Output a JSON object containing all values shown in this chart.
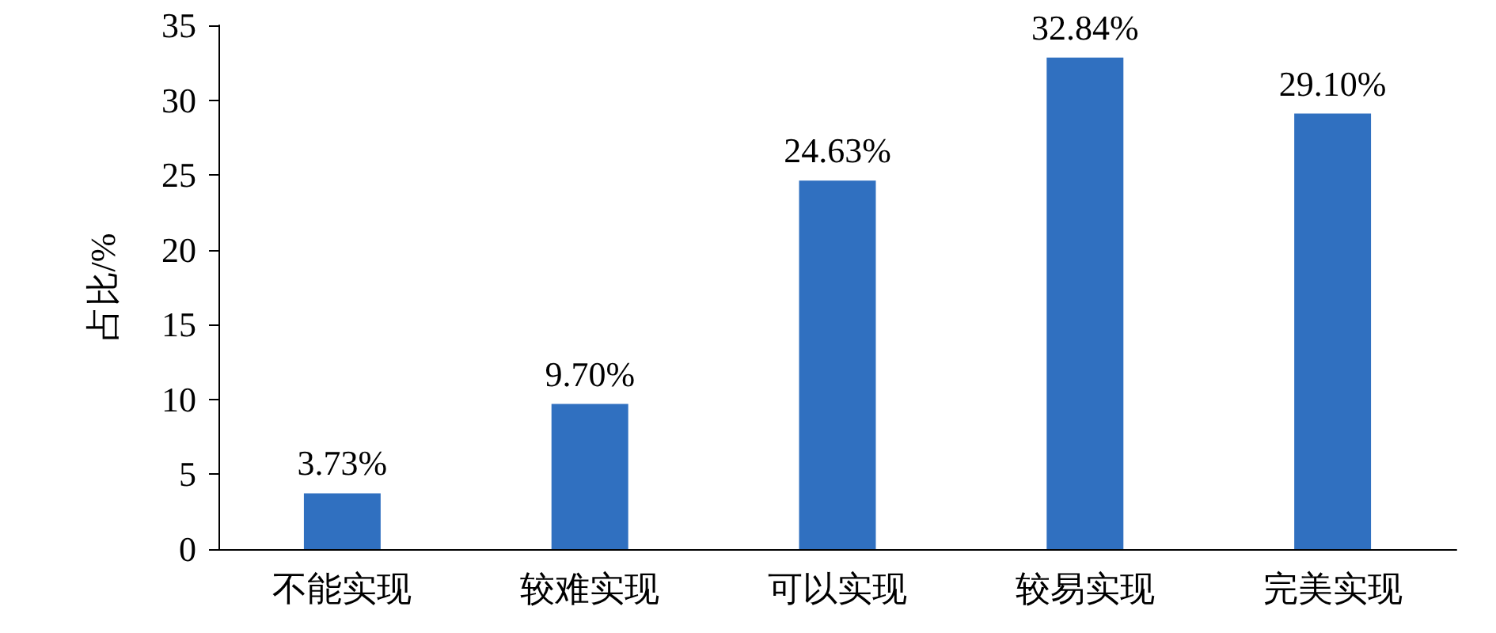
{
  "chart_data": {
    "type": "bar",
    "ylabel": "占比/%",
    "categories": [
      "不能实现",
      "较难实现",
      "可以实现",
      "较易实现",
      "完美实现"
    ],
    "values": [
      3.73,
      9.7,
      24.63,
      32.84,
      29.1
    ],
    "value_labels": [
      "3.73%",
      "9.70%",
      "24.63%",
      "32.84%",
      "29.10%"
    ],
    "color": "#3070c0",
    "ylim": [
      0,
      35
    ],
    "yticks": [
      0,
      5,
      10,
      15,
      20,
      25,
      30,
      35
    ],
    "grid": false
  }
}
